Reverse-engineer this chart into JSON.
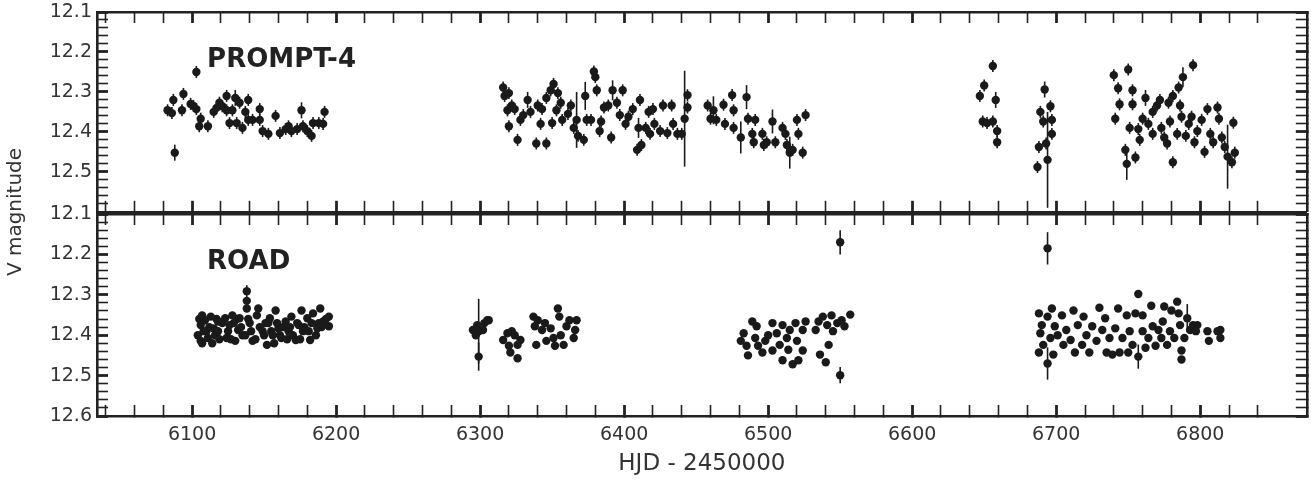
{
  "chart_data": [
    {
      "type": "scatter",
      "title": "PROMPT-4",
      "ylabel": "V magnitude",
      "marker": "circle",
      "tick_labels": "y",
      "xlim": [
        6034,
        6874
      ],
      "ylim": [
        12.6,
        12.1
      ],
      "xticks": [
        {
          "value": 6040,
          "label": null
        },
        {
          "value": 6060,
          "label": null
        },
        {
          "value": 6080,
          "label": null
        },
        6100,
        {
          "value": 6120,
          "label": null
        },
        {
          "value": 6140,
          "label": null
        },
        {
          "value": 6160,
          "label": null
        },
        {
          "value": 6180,
          "label": null
        },
        6200,
        {
          "value": 6220,
          "label": null
        },
        {
          "value": 6240,
          "label": null
        },
        {
          "value": 6260,
          "label": null
        },
        {
          "value": 6280,
          "label": null
        },
        6300,
        {
          "value": 6320,
          "label": null
        },
        {
          "value": 6340,
          "label": null
        },
        {
          "value": 6360,
          "label": null
        },
        {
          "value": 6380,
          "label": null
        },
        6400,
        {
          "value": 6420,
          "label": null
        },
        {
          "value": 6440,
          "label": null
        },
        {
          "value": 6460,
          "label": null
        },
        {
          "value": 6480,
          "label": null
        },
        6500,
        {
          "value": 6520,
          "label": null
        },
        {
          "value": 6540,
          "label": null
        },
        {
          "value": 6560,
          "label": null
        },
        {
          "value": 6580,
          "label": null
        },
        6600,
        {
          "value": 6620,
          "label": null
        },
        {
          "value": 6640,
          "label": null
        },
        {
          "value": 6660,
          "label": null
        },
        {
          "value": 6680,
          "label": null
        },
        6700,
        {
          "value": 6720,
          "label": null
        },
        {
          "value": 6740,
          "label": null
        },
        {
          "value": 6760,
          "label": null
        },
        {
          "value": 6780,
          "label": null
        },
        6800,
        {
          "value": 6820,
          "label": null
        },
        {
          "value": 6840,
          "label": null
        }
      ],
      "yticks": [
        12.1,
        {
          "value": 12.12,
          "label": null
        },
        {
          "value": 12.14,
          "label": null
        },
        {
          "value": 12.16,
          "label": null
        },
        {
          "value": 12.18,
          "label": null
        },
        12.2,
        {
          "value": 12.22,
          "label": null
        },
        {
          "value": 12.24,
          "label": null
        },
        {
          "value": 12.26,
          "label": null
        },
        {
          "value": 12.28,
          "label": null
        },
        12.3,
        {
          "value": 12.32,
          "label": null
        },
        {
          "value": 12.34,
          "label": null
        },
        {
          "value": 12.36,
          "label": null
        },
        {
          "value": 12.38,
          "label": null
        },
        12.4,
        {
          "value": 12.42,
          "label": null
        },
        {
          "value": 12.44,
          "label": null
        },
        {
          "value": 12.46,
          "label": null
        },
        {
          "value": 12.48,
          "label": null
        },
        12.5,
        {
          "value": 12.52,
          "label": null
        },
        {
          "value": 12.54,
          "label": null
        },
        {
          "value": 12.56,
          "label": null
        },
        {
          "value": 12.58,
          "label": null
        }
      ],
      "series": [
        {
          "color": "#1a1a1a",
          "x": [
            6083,
            6086,
            6087,
            6088,
            6093,
            6094,
            6099,
            6101,
            6103,
            6103,
            6105,
            6106,
            6111,
            6115,
            6117,
            6119,
            6121,
            6124,
            6124,
            6126,
            6128,
            6130,
            6131,
            6133,
            6135,
            6137,
            6139,
            6139,
            6142,
            6147,
            6147,
            6149,
            6153,
            6158,
            6161,
            6165,
            6167,
            6169,
            6173,
            6176,
            6177,
            6180,
            6183,
            6184,
            6188,
            6191,
            6192,
            6316,
            6317,
            6319,
            6320,
            6320,
            6322,
            6324,
            6326,
            6328,
            6330,
            6333,
            6335,
            6339,
            6340,
            6342,
            6343,
            6346,
            6346,
            6349,
            6351,
            6350,
            6353,
            6354,
            6356,
            6357,
            6361,
            6363,
            6365,
            6367,
            6368,
            6372,
            6373,
            6374,
            6377,
            6379,
            6380,
            6381,
            6383,
            6384,
            6386,
            6389,
            6391,
            6392,
            6395,
            6397,
            6399,
            6401,
            6403,
            6406,
            6409,
            6410,
            6411,
            6412,
            6415,
            6417,
            6418,
            6420,
            6421,
            6425,
            6427,
            6430,
            6433,
            6434,
            6437,
            6440,
            6442,
            6444,
            6444,
            6458,
            6460,
            6462,
            6464,
            6469,
            6470,
            6475,
            6476,
            6476,
            6481,
            6485,
            6486,
            6489,
            6490,
            6491,
            6496,
            6497,
            6499,
            6503,
            6505,
            6510,
            6512,
            6513,
            6515,
            6517,
            6520,
            6521,
            6524,
            6526,
            6647,
            6650,
            6649,
            6652,
            6656,
            6656,
            6658,
            6659,
            6659,
            6687,
            6688,
            6689,
            6691,
            6692,
            6693,
            6694,
            6696,
            6697,
            6697,
            6740,
            6741,
            6743,
            6744,
            6748,
            6749,
            6750,
            6751,
            6753,
            6753,
            6755,
            6757,
            6758,
            6760,
            6762,
            6764,
            6767,
            6767,
            6770,
            6772,
            6773,
            6775,
            6777,
            6778,
            6779,
            6781,
            6781,
            6784,
            6785,
            6786,
            6787,
            6788,
            6790,
            6792,
            6794,
            6795,
            6796,
            6798,
            6801,
            6803,
            6805,
            6807,
            6809,
            6812,
            6813,
            6815,
            6817,
            6819,
            6822,
            6823,
            6824
          ],
          "values": [
            12.346,
            12.353,
            12.32,
            12.452,
            12.346,
            12.305,
            12.33,
            12.335,
            12.25,
            12.343,
            12.386,
            12.367,
            12.386,
            12.35,
            12.34,
            12.327,
            12.336,
            12.31,
            12.346,
            12.378,
            12.346,
            12.315,
            12.378,
            12.327,
            12.39,
            12.35,
            12.32,
            12.37,
            12.37,
            12.343,
            12.37,
            12.398,
            12.405,
            12.36,
            12.403,
            12.393,
            12.386,
            12.398,
            12.393,
            12.346,
            12.386,
            12.398,
            12.41,
            12.378,
            12.378,
            12.38,
            12.35,
            12.289,
            12.31,
            12.346,
            12.303,
            12.386,
            12.334,
            12.343,
            12.42,
            12.37,
            12.358,
            12.32,
            12.35,
            12.429,
            12.334,
            12.38,
            12.343,
            12.429,
            12.315,
            12.296,
            12.28,
            12.378,
            12.346,
            12.303,
            12.327,
            12.37,
            12.355,
            12.334,
            12.39,
            12.37,
            12.41,
            12.42,
            12.31,
            12.37,
            12.37,
            12.249,
            12.263,
            12.296,
            12.398,
            12.374,
            12.339,
            12.334,
            12.414,
            12.296,
            12.327,
            12.358,
            12.296,
            12.38,
            12.362,
            12.343,
            12.445,
            12.39,
            12.32,
            12.433,
            12.39,
            12.35,
            12.405,
            12.343,
            12.38,
            12.398,
            12.334,
            12.403,
            12.334,
            12.38,
            12.405,
            12.405,
            12.367,
            12.308,
            12.339,
            12.334,
            12.367,
            12.346,
            12.37,
            12.332,
            12.38,
            12.308,
            12.346,
            12.39,
            12.414,
            12.313,
            12.367,
            12.405,
            12.426,
            12.37,
            12.405,
            12.433,
            12.426,
            12.374,
            12.426,
            12.39,
            12.405,
            12.433,
            12.452,
            12.445,
            12.37,
            12.405,
            12.452,
            12.358,
            12.31,
            12.284,
            12.374,
            12.378,
            12.374,
            12.235,
            12.32,
            12.398,
            12.426,
            12.488,
            12.438,
            12.35,
            12.374,
            12.294,
            12.429,
            12.47,
            12.336,
            12.405,
            12.37,
            12.258,
            12.367,
            12.291,
            12.331,
            12.445,
            12.48,
            12.244,
            12.39,
            12.331,
            12.296,
            12.464,
            12.393,
            12.42,
            12.367,
            12.315,
            12.38,
            12.35,
            12.405,
            12.334,
            12.32,
            12.39,
            12.414,
            12.429,
            12.327,
            12.374,
            12.476,
            12.31,
            12.405,
            12.289,
            12.334,
            12.362,
            12.263,
            12.41,
            12.38,
            12.362,
            12.233,
            12.426,
            12.398,
            12.37,
            12.45,
            12.343,
            12.405,
            12.426,
            12.339,
            12.367,
            12.414,
            12.438,
            12.462,
            12.476,
            12.377,
            12.452
          ],
          "errors": [
            0.015,
            0.015,
            0.015,
            0.02,
            0.015,
            0.015,
            0.015,
            0.015,
            0.015,
            0.015,
            0.015,
            0.015,
            0.015,
            0.015,
            0.015,
            0.015,
            0.015,
            0.015,
            0.015,
            0.015,
            0.015,
            0.02,
            0.015,
            0.015,
            0.015,
            0.015,
            0.015,
            0.015,
            0.015,
            0.015,
            0.015,
            0.015,
            0.015,
            0.015,
            0.015,
            0.015,
            0.015,
            0.015,
            0.015,
            0.02,
            0.015,
            0.015,
            0.015,
            0.015,
            0.015,
            0.015,
            0.015,
            0.015,
            0.015,
            0.015,
            0.015,
            0.015,
            0.015,
            0.015,
            0.015,
            0.015,
            0.015,
            0.02,
            0.015,
            0.015,
            0.015,
            0.015,
            0.015,
            0.015,
            0.015,
            0.015,
            0.015,
            0.015,
            0.015,
            0.015,
            0.015,
            0.015,
            0.015,
            0.015,
            0.015,
            0.07,
            0.015,
            0.015,
            0.035,
            0.015,
            0.015,
            0.015,
            0.015,
            0.015,
            0.015,
            0.015,
            0.015,
            0.015,
            0.015,
            0.025,
            0.015,
            0.015,
            0.015,
            0.015,
            0.015,
            0.015,
            0.015,
            0.025,
            0.015,
            0.015,
            0.015,
            0.015,
            0.015,
            0.015,
            0.015,
            0.015,
            0.015,
            0.015,
            0.015,
            0.015,
            0.015,
            0.015,
            0.12,
            0.015,
            0.015,
            0.015,
            0.015,
            0.035,
            0.015,
            0.015,
            0.015,
            0.015,
            0.015,
            0.015,
            0.04,
            0.03,
            0.015,
            0.015,
            0.015,
            0.015,
            0.015,
            0.015,
            0.015,
            0.03,
            0.015,
            0.015,
            0.015,
            0.015,
            0.04,
            0.015,
            0.015,
            0.015,
            0.015,
            0.015,
            0.015,
            0.015,
            0.015,
            0.015,
            0.015,
            0.015,
            0.02,
            0.015,
            0.015,
            0.015,
            0.015,
            0.015,
            0.015,
            0.02,
            0.015,
            0.12,
            0.015,
            0.015,
            0.015,
            0.015,
            0.015,
            0.015,
            0.015,
            0.015,
            0.04,
            0.015,
            0.015,
            0.015,
            0.015,
            0.015,
            0.015,
            0.015,
            0.015,
            0.02,
            0.015,
            0.015,
            0.015,
            0.015,
            0.015,
            0.015,
            0.015,
            0.015,
            0.015,
            0.015,
            0.015,
            0.015,
            0.015,
            0.015,
            0.015,
            0.015,
            0.025,
            0.015,
            0.015,
            0.015,
            0.015,
            0.015,
            0.015,
            0.015,
            0.015,
            0.015,
            0.015,
            0.015,
            0.015,
            0.015,
            0.015,
            0.015,
            0.08,
            0.015,
            0.015,
            0.015
          ]
        }
      ]
    },
    {
      "type": "scatter",
      "title": "ROAD",
      "xlabel": "HJD - 2450000",
      "marker": "circle",
      "xlim": [
        6034,
        6874
      ],
      "ylim": [
        12.6,
        12.1
      ],
      "xticks": [
        {
          "value": 6040,
          "label": null
        },
        {
          "value": 6060,
          "label": null
        },
        {
          "value": 6080,
          "label": null
        },
        6100,
        {
          "value": 6120,
          "label": null
        },
        {
          "value": 6140,
          "label": null
        },
        {
          "value": 6160,
          "label": null
        },
        {
          "value": 6180,
          "label": null
        },
        6200,
        {
          "value": 6220,
          "label": null
        },
        {
          "value": 6240,
          "label": null
        },
        {
          "value": 6260,
          "label": null
        },
        {
          "value": 6280,
          "label": null
        },
        6300,
        {
          "value": 6320,
          "label": null
        },
        {
          "value": 6340,
          "label": null
        },
        {
          "value": 6360,
          "label": null
        },
        {
          "value": 6380,
          "label": null
        },
        6400,
        {
          "value": 6420,
          "label": null
        },
        {
          "value": 6440,
          "label": null
        },
        {
          "value": 6460,
          "label": null
        },
        {
          "value": 6480,
          "label": null
        },
        6500,
        {
          "value": 6520,
          "label": null
        },
        {
          "value": 6540,
          "label": null
        },
        {
          "value": 6560,
          "label": null
        },
        {
          "value": 6580,
          "label": null
        },
        6600,
        {
          "value": 6620,
          "label": null
        },
        {
          "value": 6640,
          "label": null
        },
        {
          "value": 6660,
          "label": null
        },
        {
          "value": 6680,
          "label": null
        },
        6700,
        {
          "value": 6720,
          "label": null
        },
        {
          "value": 6740,
          "label": null
        },
        {
          "value": 6760,
          "label": null
        },
        {
          "value": 6780,
          "label": null
        },
        6800,
        {
          "value": 6820,
          "label": null
        },
        {
          "value": 6840,
          "label": null
        }
      ],
      "yticks": [
        12.1,
        {
          "value": 12.12,
          "label": null
        },
        {
          "value": 12.14,
          "label": null
        },
        {
          "value": 12.16,
          "label": null
        },
        {
          "value": 12.18,
          "label": null
        },
        12.2,
        {
          "value": 12.22,
          "label": null
        },
        {
          "value": 12.24,
          "label": null
        },
        {
          "value": 12.26,
          "label": null
        },
        {
          "value": 12.28,
          "label": null
        },
        12.3,
        {
          "value": 12.32,
          "label": null
        },
        {
          "value": 12.34,
          "label": null
        },
        {
          "value": 12.36,
          "label": null
        },
        {
          "value": 12.38,
          "label": null
        },
        12.4,
        {
          "value": 12.42,
          "label": null
        },
        {
          "value": 12.44,
          "label": null
        },
        {
          "value": 12.46,
          "label": null
        },
        {
          "value": 12.48,
          "label": null
        },
        12.5,
        {
          "value": 12.52,
          "label": null
        },
        {
          "value": 12.54,
          "label": null
        },
        {
          "value": 12.56,
          "label": null
        },
        {
          "value": 12.58,
          "label": null
        },
        12.6
      ],
      "series": [
        {
          "color": "#1a1a1a",
          "x": [
            6104,
            6105,
            6106,
            6106,
            6107,
            6107,
            6108,
            6109,
            6110,
            6111,
            6112,
            6113,
            6114,
            6115,
            6116,
            6117,
            6118,
            6118,
            6119,
            6121,
            6123,
            6124,
            6125,
            6126,
            6127,
            6128,
            6129,
            6130,
            6131,
            6132,
            6133,
            6134,
            6135,
            6137,
            6138,
            6138,
            6138,
            6139,
            6140,
            6141,
            6142,
            6144,
            6145,
            6146,
            6147,
            6149,
            6150,
            6151,
            6152,
            6153,
            6154,
            6155,
            6156,
            6157,
            6158,
            6159,
            6160,
            6161,
            6162,
            6163,
            6165,
            6166,
            6167,
            6168,
            6169,
            6170,
            6172,
            6173,
            6174,
            6175,
            6176,
            6177,
            6178,
            6180,
            6181,
            6182,
            6183,
            6184,
            6186,
            6187,
            6188,
            6189,
            6190,
            6191,
            6193,
            6195,
            6195,
            6295,
            6297,
            6298,
            6299,
            6299,
            6302,
            6303,
            6305,
            6306,
            6316,
            6319,
            6320,
            6321,
            6322,
            6324,
            6326,
            6326,
            6328,
            6337,
            6338,
            6339,
            6340,
            6343,
            6345,
            6346,
            6349,
            6351,
            6352,
            6354,
            6355,
            6356,
            6358,
            6360,
            6362,
            6365,
            6366,
            6367,
            6481,
            6483,
            6485,
            6486,
            6489,
            6491,
            6492,
            6493,
            6496,
            6498,
            6500,
            6503,
            6503,
            6506,
            6508,
            6510,
            6510,
            6513,
            6514,
            6515,
            6517,
            6519,
            6520,
            6521,
            6524,
            6524,
            6526,
            6533,
            6535,
            6536,
            6538,
            6540,
            6541,
            6542,
            6544,
            6545,
            6548,
            6550,
            6550,
            6551,
            6553,
            6557,
            6688,
            6688,
            6689,
            6690,
            6691,
            6694,
            6694,
            6694,
            6696,
            6697,
            6698,
            6699,
            6701,
            6704,
            6705,
            6707,
            6710,
            6712,
            6713,
            6715,
            6718,
            6719,
            6721,
            6723,
            6725,
            6728,
            6730,
            6732,
            6734,
            6735,
            6737,
            6739,
            6741,
            6743,
            6744,
            6746,
            6749,
            6750,
            6751,
            6753,
            6755,
            6757,
            6757,
            6760,
            6760,
            6762,
            6764,
            6766,
            6767,
            6769,
            6771,
            6773,
            6774,
            6775,
            6777,
            6779,
            6780,
            6782,
            6784,
            6785,
            6786,
            6787,
            6787,
            6789,
            6791,
            6793,
            6795,
            6797,
            6798,
            6805,
            6806,
            6812,
            6814,
            6814
          ],
          "values": [
            12.4,
            12.36,
            12.375,
            12.414,
            12.351,
            12.42,
            12.39,
            12.363,
            12.39,
            12.407,
            12.38,
            12.354,
            12.42,
            12.383,
            12.4,
            12.36,
            12.366,
            12.39,
            12.41,
            12.37,
            12.358,
            12.407,
            12.39,
            12.375,
            12.41,
            12.351,
            12.37,
            12.414,
            12.36,
            12.387,
            12.358,
            12.38,
            12.4,
            12.4,
            12.291,
            12.315,
            12.334,
            12.36,
            12.37,
            12.39,
            12.414,
            12.41,
            12.351,
            12.334,
            12.38,
            12.39,
            12.4,
            12.37,
            12.424,
            12.37,
            12.358,
            12.39,
            12.4,
            12.42,
            12.339,
            12.37,
            12.383,
            12.4,
            12.407,
            12.38,
            12.366,
            12.41,
            12.39,
            12.38,
            12.354,
            12.4,
            12.412,
            12.37,
            12.375,
            12.41,
            12.339,
            12.39,
            12.38,
            12.358,
            12.39,
            12.412,
            12.37,
            12.346,
            12.4,
            12.383,
            12.37,
            12.334,
            12.38,
            12.366,
            12.36,
            12.354,
            12.378,
            12.387,
            12.4,
            12.375,
            12.39,
            12.453,
            12.387,
            12.37,
            12.363,
            12.363,
            12.412,
            12.395,
            12.426,
            12.443,
            12.39,
            12.4,
            12.424,
            12.457,
            12.412,
            12.354,
            12.378,
            12.424,
            12.363,
            12.387,
            12.37,
            12.414,
            12.383,
            12.407,
            12.426,
            12.334,
            12.354,
            12.4,
            12.424,
            12.378,
            12.363,
            12.407,
            12.387,
            12.363,
            12.414,
            12.395,
            12.426,
            12.45,
            12.366,
            12.407,
            12.378,
            12.426,
            12.443,
            12.414,
            12.4,
            12.438,
            12.37,
            12.395,
            12.424,
            12.462,
            12.375,
            12.407,
            12.436,
            12.387,
            12.472,
            12.37,
            12.414,
            12.462,
            12.438,
            12.387,
            12.366,
            12.387,
            12.366,
            12.448,
            12.354,
            12.467,
            12.375,
            12.424,
            12.351,
            12.39,
            12.37,
            12.17,
            12.499,
            12.363,
            12.378,
            12.349,
            12.346,
            12.443,
            12.395,
            12.375,
            12.424,
            12.354,
            12.185,
            12.47,
            12.407,
            12.334,
            12.448,
            12.378,
            12.4,
            12.351,
            12.424,
            12.387,
            12.412,
            12.339,
            12.443,
            12.375,
            12.424,
            12.354,
            12.4,
            12.443,
            12.378,
            12.414,
            12.332,
            12.387,
            12.358,
            12.443,
            12.407,
            12.448,
            12.383,
            12.334,
            12.443,
            12.407,
            12.351,
            12.443,
            12.39,
            12.424,
            12.346,
            12.298,
            12.453,
            12.39,
            12.351,
            12.431,
            12.407,
            12.327,
            12.378,
            12.426,
            12.387,
            12.407,
            12.366,
            12.329,
            12.424,
            12.39,
            12.339,
            12.407,
            12.317,
            12.346,
            12.375,
            12.438,
            12.46,
            12.407,
            12.358,
            12.387,
            12.375,
            12.39,
            12.375,
            12.39,
            12.414,
            12.39,
            12.407,
            12.387
          ],
          "errors": [
            null,
            null,
            null,
            null,
            null,
            null,
            null,
            null,
            null,
            null,
            null,
            null,
            null,
            null,
            null,
            null,
            null,
            null,
            null,
            null,
            null,
            null,
            null,
            null,
            null,
            null,
            null,
            null,
            null,
            null,
            null,
            null,
            null,
            null,
            0.015,
            null,
            null,
            null,
            null,
            null,
            null,
            null,
            null,
            null,
            null,
            null,
            null,
            null,
            null,
            null,
            null,
            null,
            null,
            null,
            null,
            null,
            null,
            null,
            null,
            null,
            null,
            null,
            null,
            null,
            null,
            null,
            null,
            null,
            null,
            null,
            null,
            null,
            null,
            null,
            null,
            null,
            null,
            null,
            null,
            null,
            null,
            null,
            null,
            null,
            null,
            null,
            null,
            null,
            null,
            null,
            0.08,
            0.035,
            null,
            null,
            null,
            null,
            null,
            null,
            null,
            null,
            null,
            null,
            null,
            null,
            null,
            null,
            null,
            null,
            null,
            null,
            null,
            null,
            null,
            null,
            null,
            null,
            null,
            null,
            null,
            null,
            null,
            null,
            null,
            null,
            null,
            null,
            null,
            null,
            null,
            null,
            null,
            null,
            null,
            null,
            null,
            null,
            null,
            null,
            null,
            null,
            null,
            null,
            null,
            null,
            null,
            null,
            null,
            null,
            null,
            null,
            null,
            null,
            null,
            null,
            null,
            null,
            null,
            null,
            null,
            null,
            null,
            0.03,
            0.02,
            null,
            null,
            null,
            null,
            null,
            null,
            null,
            null,
            null,
            0.04,
            0.04,
            null,
            null,
            null,
            null,
            null,
            null,
            null,
            null,
            null,
            null,
            null,
            null,
            null,
            null,
            null,
            null,
            null,
            null,
            null,
            null,
            null,
            null,
            null,
            null,
            null,
            null,
            null,
            null,
            null,
            null,
            null,
            null,
            null,
            null,
            0.03,
            null,
            null,
            null,
            null,
            null,
            null,
            null,
            null,
            null,
            null,
            null,
            null,
            null,
            null,
            null,
            null,
            null,
            null,
            null,
            null,
            null,
            0.035,
            null,
            null,
            null,
            null,
            null,
            null,
            null,
            null,
            null
          ]
        }
      ]
    }
  ]
}
